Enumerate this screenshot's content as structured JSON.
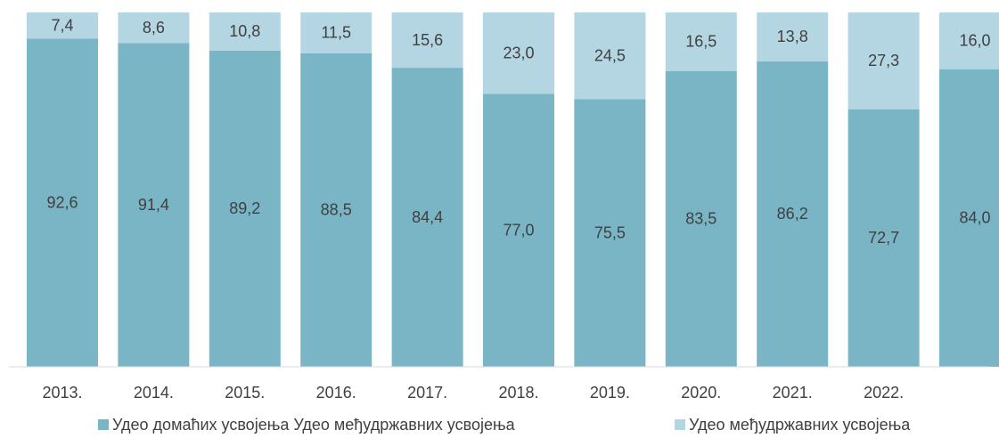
{
  "chart_data": {
    "type": "bar",
    "stacked": true,
    "categories": [
      "2013.",
      "2014.",
      "2015.",
      "2016.",
      "2017.",
      "2018.",
      "2019.",
      "2020.",
      "2021.",
      "2022.",
      null
    ],
    "ylim": [
      0,
      100
    ],
    "legend": "bottom",
    "series": [
      {
        "name": "Удео домаћих усвојења Удео међудржавних усвојења",
        "color": "#7ab5c5",
        "values": [
          92.6,
          91.4,
          89.2,
          88.5,
          84.4,
          77.0,
          75.5,
          83.5,
          86.2,
          72.7,
          84.0
        ],
        "value_labels": [
          "92,6",
          "91,4",
          "89,2",
          "88,5",
          "84,4",
          "77,0",
          "75,5",
          "83,5",
          "86,2",
          "72,7",
          "84,0"
        ]
      },
      {
        "name": "Удео међудржавних усвојења",
        "color": "#b4d6e2",
        "values": [
          7.4,
          8.6,
          10.8,
          11.5,
          15.6,
          23.0,
          24.5,
          16.5,
          13.8,
          27.3,
          16.0
        ],
        "value_labels": [
          "7,4",
          "8,6",
          "10,8",
          "11,5",
          "15,6",
          "23,0",
          "24,5",
          "16,5",
          "13,8",
          "27,3",
          "16,0"
        ]
      }
    ]
  }
}
